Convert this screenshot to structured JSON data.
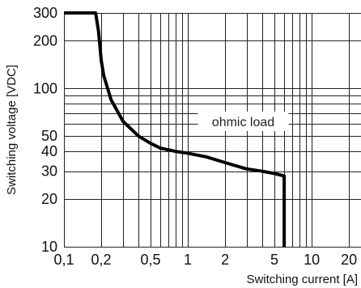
{
  "chart_data": {
    "type": "line",
    "title": "",
    "xlabel": "Switching current [A]",
    "ylabel": "Switching voltage [VDC]",
    "xscale": "log",
    "yscale": "log",
    "xlim": [
      0.1,
      25
    ],
    "ylim": [
      10,
      300
    ],
    "x_ticks": [
      0.1,
      0.2,
      0.5,
      1,
      2,
      5,
      10,
      20
    ],
    "x_tick_labels": [
      "0,1",
      "0,2",
      "0,5",
      "1",
      "2",
      "5",
      "10",
      "20"
    ],
    "y_ticks": [
      10,
      20,
      30,
      40,
      50,
      100,
      200,
      300
    ],
    "y_tick_labels": [
      "10",
      "20",
      "30",
      "40",
      "50",
      "100",
      "200",
      "300"
    ],
    "x_grid": [
      0.2,
      0.3,
      0.4,
      0.5,
      0.6,
      0.7,
      0.8,
      0.9,
      1,
      2,
      3,
      4,
      5,
      6,
      7,
      8,
      9,
      10,
      20
    ],
    "y_grid": [
      10,
      20,
      30,
      40,
      50,
      60,
      70,
      80,
      90,
      100,
      200,
      300
    ],
    "grid": true,
    "series": [
      {
        "name": "",
        "x": [
          0.1,
          0.18,
          0.19,
          0.2,
          0.21,
          0.24,
          0.3,
          0.4,
          0.5,
          0.6,
          0.8,
          1.0,
          1.4,
          2.0,
          3.0,
          4.0,
          5.0,
          6.0,
          6.0
        ],
        "y": [
          300,
          300,
          230,
          150,
          120,
          85,
          62,
          50,
          45,
          42,
          40,
          39,
          37,
          34,
          31,
          30,
          29,
          28,
          10
        ]
      }
    ],
    "annotations": [
      {
        "text": "ohmic load",
        "x": 2.8,
        "y": 62
      }
    ]
  }
}
